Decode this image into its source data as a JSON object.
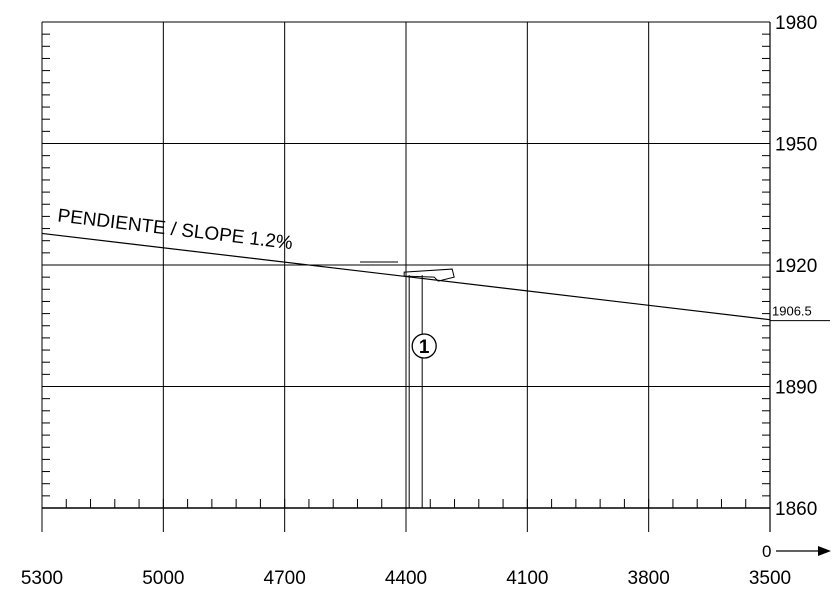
{
  "chart_data": {
    "type": "line",
    "x_ticks": [
      5300,
      5000,
      4700,
      4400,
      4100,
      3800,
      3500
    ],
    "y_ticks": [
      1980,
      1950,
      1920,
      1890,
      1860
    ],
    "xlim": [
      5300,
      3500
    ],
    "ylim": [
      1860,
      1980
    ],
    "origin_label": "0",
    "grid": true,
    "slope_line": {
      "label": "PENDIENTE / SLOPE 1.2%",
      "x": [
        5300,
        3500
      ],
      "y": [
        1927.8,
        1906.5
      ],
      "end_label": "1906.5"
    },
    "marker": {
      "label": "1",
      "x": 4360,
      "y_top": 1918.5,
      "y_bottom": 1860
    }
  }
}
